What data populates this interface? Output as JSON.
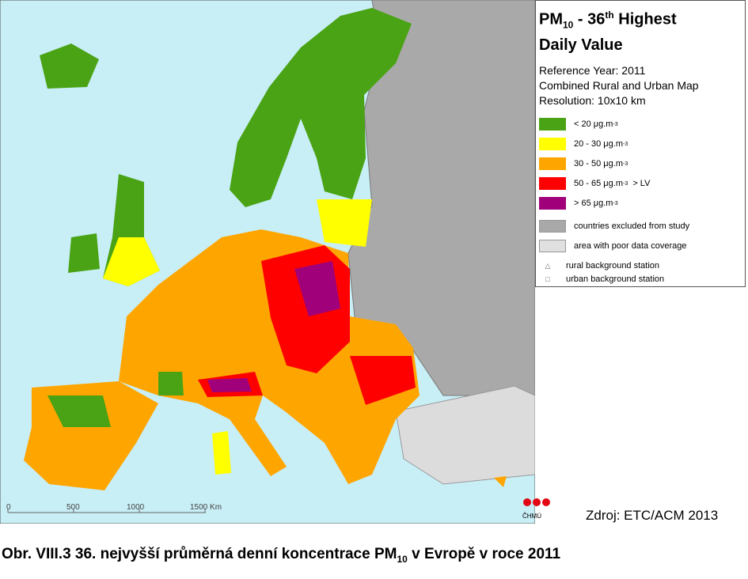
{
  "legend": {
    "title": {
      "a": "PM",
      "a_sub": "10",
      "b": " - 36",
      "b_sup": "th",
      "c": " Highest",
      "line2": "Daily Value"
    },
    "meta": [
      "Reference Year: 2011",
      "Combined Rural and Urban Map",
      "Resolution: 10x10 km"
    ],
    "items": [
      {
        "label": "<  20  μg.m",
        "sup": "-3",
        "suffix": ""
      },
      {
        "label": "20 - 30  μg.m",
        "sup": "-3",
        "suffix": ""
      },
      {
        "label": "30 - 50  μg.m",
        "sup": "-3",
        "suffix": ""
      },
      {
        "label": "50 - 65  μg.m",
        "sup": "-3",
        "suffix": "  > LV"
      },
      {
        "label": ">  65  μg.m",
        "sup": "-3",
        "suffix": ""
      },
      {
        "label": "countries excluded from study",
        "sup": "",
        "suffix": ""
      },
      {
        "label": "area with poor data coverage",
        "sup": "",
        "suffix": ""
      }
    ],
    "stations": [
      {
        "symbol": "△",
        "label": "rural background station"
      },
      {
        "symbol": "□",
        "label": "urban background station"
      }
    ]
  },
  "scale": [
    "0",
    "500",
    "1000",
    "1500 Km"
  ],
  "logo": "ČHMÚ",
  "source": "Zdroj: ETC/ACM 2013",
  "caption": {
    "a": "Obr. VIII.3  36. nejvyšší průměrná denní koncentrace PM",
    "sub": "10",
    "b": " v Evropě v roce 2011"
  }
}
